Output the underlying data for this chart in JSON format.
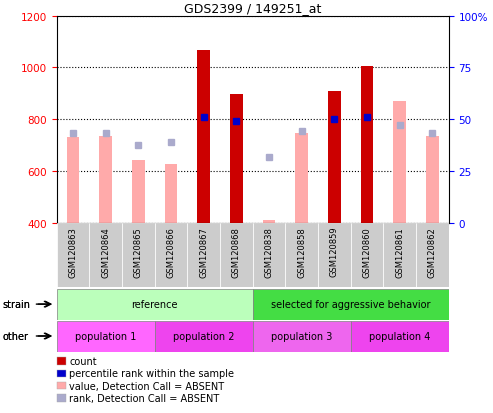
{
  "title": "GDS2399 / 149251_at",
  "samples": [
    "GSM120863",
    "GSM120864",
    "GSM120865",
    "GSM120866",
    "GSM120867",
    "GSM120868",
    "GSM120838",
    "GSM120858",
    "GSM120859",
    "GSM120860",
    "GSM120861",
    "GSM120862"
  ],
  "ylim_left": [
    400,
    1200
  ],
  "ylim_right": [
    0,
    100
  ],
  "y_ticks_left": [
    400,
    600,
    800,
    1000,
    1200
  ],
  "y_ticks_right": [
    0,
    25,
    50,
    75,
    100
  ],
  "count_values": [
    null,
    null,
    null,
    null,
    1065,
    895,
    null,
    null,
    910,
    1005,
    null,
    null
  ],
  "value_absent": [
    730,
    735,
    640,
    625,
    null,
    null,
    410,
    745,
    null,
    null,
    870,
    735
  ],
  "rank_absent": [
    745,
    747,
    700,
    710,
    null,
    null,
    655,
    752,
    null,
    null,
    778,
    748
  ],
  "percentile_rank": [
    null,
    null,
    null,
    null,
    51,
    49,
    null,
    null,
    50,
    51,
    null,
    null
  ],
  "bar_color_count": "#cc0000",
  "bar_color_value_absent": "#ffaaaa",
  "dot_color_rank_absent": "#aaaacc",
  "dot_color_percentile": "#0000cc",
  "strain_groups": [
    {
      "label": "reference",
      "start": 0,
      "end": 6,
      "color": "#bbffbb"
    },
    {
      "label": "selected for aggressive behavior",
      "start": 6,
      "end": 12,
      "color": "#44dd44"
    }
  ],
  "other_groups": [
    {
      "label": "population 1",
      "start": 0,
      "end": 3,
      "color": "#ff66ff"
    },
    {
      "label": "population 2",
      "start": 3,
      "end": 6,
      "color": "#ee44ee"
    },
    {
      "label": "population 3",
      "start": 6,
      "end": 9,
      "color": "#ee66ee"
    },
    {
      "label": "population 4",
      "start": 9,
      "end": 12,
      "color": "#ee44ee"
    }
  ],
  "legend_items": [
    {
      "label": "count",
      "color": "#cc0000"
    },
    {
      "label": "percentile rank within the sample",
      "color": "#0000cc"
    },
    {
      "label": "value, Detection Call = ABSENT",
      "color": "#ffaaaa"
    },
    {
      "label": "rank, Detection Call = ABSENT",
      "color": "#aaaacc"
    }
  ]
}
